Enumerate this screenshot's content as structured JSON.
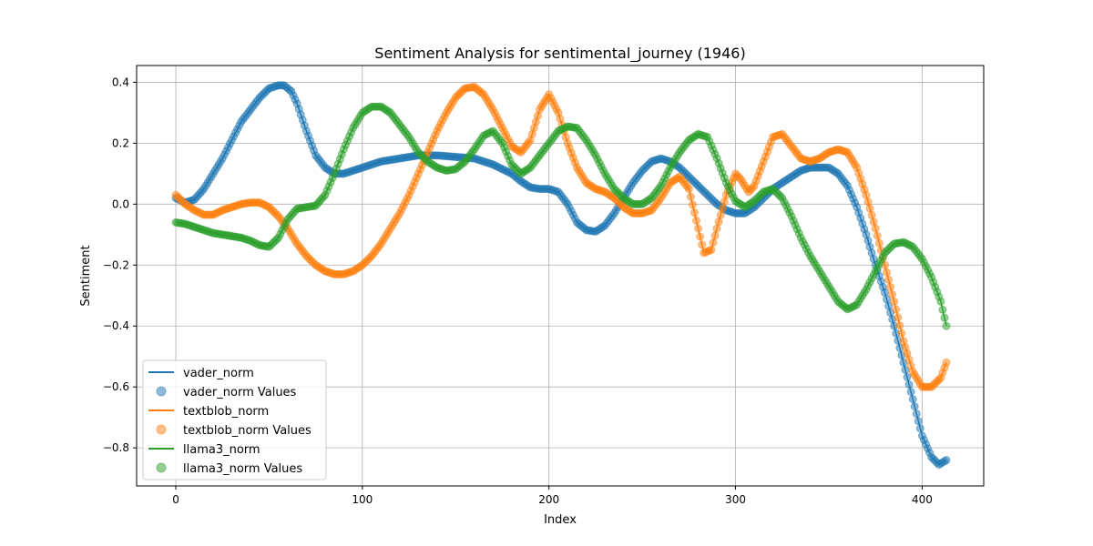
{
  "chart_data": {
    "type": "line",
    "title": "Sentiment Analysis for sentimental_journey (1946)",
    "xlabel": "Index",
    "ylabel": "Sentiment",
    "xlim": [
      -21,
      433
    ],
    "ylim": [
      -0.925,
      0.455
    ],
    "xticks": [
      0,
      100,
      200,
      300,
      400
    ],
    "yticks": [
      -0.8,
      -0.6,
      -0.4,
      -0.2,
      0.0,
      0.2,
      0.4
    ],
    "ytick_labels": [
      "−0.8",
      "−0.6",
      "−0.4",
      "−0.2",
      "0.0",
      "0.2",
      "0.4"
    ],
    "grid": true,
    "legend_position": "lower-left",
    "legend": [
      "vader_norm",
      "vader_norm Values",
      "textblob_norm",
      "textblob_norm Values",
      "llama3_norm",
      "llama3_norm Values"
    ],
    "series": [
      {
        "name": "vader_norm",
        "color": "#1f77b4",
        "x": [
          0,
          5,
          10,
          15,
          20,
          25,
          30,
          35,
          40,
          45,
          50,
          55,
          58,
          62,
          65,
          70,
          75,
          80,
          85,
          90,
          95,
          100,
          110,
          120,
          130,
          140,
          150,
          160,
          170,
          180,
          185,
          190,
          195,
          200,
          205,
          210,
          215,
          220,
          225,
          230,
          235,
          240,
          245,
          250,
          255,
          260,
          265,
          270,
          275,
          280,
          285,
          290,
          295,
          300,
          305,
          310,
          315,
          320,
          325,
          330,
          335,
          340,
          345,
          350,
          355,
          360,
          365,
          370,
          375,
          380,
          385,
          390,
          395,
          400,
          405,
          409,
          413
        ],
        "y": [
          0.02,
          0.005,
          0.015,
          0.05,
          0.1,
          0.15,
          0.21,
          0.27,
          0.31,
          0.35,
          0.38,
          0.39,
          0.39,
          0.37,
          0.33,
          0.24,
          0.16,
          0.12,
          0.1,
          0.1,
          0.11,
          0.12,
          0.14,
          0.15,
          0.16,
          0.16,
          0.155,
          0.15,
          0.13,
          0.1,
          0.075,
          0.055,
          0.05,
          0.05,
          0.04,
          0.0,
          -0.06,
          -0.085,
          -0.09,
          -0.07,
          -0.03,
          0.02,
          0.07,
          0.11,
          0.14,
          0.15,
          0.14,
          0.12,
          0.09,
          0.06,
          0.03,
          0.0,
          -0.02,
          -0.03,
          -0.03,
          -0.01,
          0.02,
          0.05,
          0.07,
          0.09,
          0.11,
          0.12,
          0.12,
          0.12,
          0.1,
          0.06,
          -0.01,
          -0.1,
          -0.2,
          -0.29,
          -0.4,
          -0.52,
          -0.64,
          -0.76,
          -0.83,
          -0.855,
          -0.84
        ]
      },
      {
        "name": "textblob_norm",
        "color": "#ff7f0e",
        "x": [
          0,
          5,
          10,
          15,
          20,
          25,
          30,
          35,
          40,
          45,
          50,
          55,
          60,
          65,
          70,
          75,
          80,
          85,
          90,
          95,
          100,
          105,
          110,
          115,
          120,
          125,
          130,
          135,
          140,
          145,
          150,
          155,
          160,
          165,
          170,
          175,
          180,
          185,
          190,
          195,
          200,
          205,
          210,
          215,
          220,
          225,
          230,
          235,
          240,
          245,
          250,
          255,
          260,
          265,
          270,
          275,
          280,
          283,
          287,
          290,
          295,
          300,
          303,
          307,
          310,
          315,
          320,
          325,
          330,
          335,
          340,
          345,
          350,
          355,
          360,
          365,
          370,
          375,
          380,
          385,
          390,
          395,
          400,
          405,
          410,
          413
        ],
        "y": [
          0.03,
          0.0,
          -0.02,
          -0.035,
          -0.035,
          -0.02,
          -0.01,
          0.0,
          0.005,
          0.005,
          -0.01,
          -0.04,
          -0.08,
          -0.13,
          -0.17,
          -0.2,
          -0.22,
          -0.23,
          -0.23,
          -0.22,
          -0.2,
          -0.17,
          -0.13,
          -0.08,
          -0.03,
          0.03,
          0.1,
          0.17,
          0.24,
          0.3,
          0.35,
          0.38,
          0.385,
          0.36,
          0.31,
          0.25,
          0.19,
          0.17,
          0.21,
          0.31,
          0.36,
          0.3,
          0.2,
          0.12,
          0.07,
          0.05,
          0.04,
          0.02,
          -0.01,
          -0.03,
          -0.03,
          -0.02,
          0.02,
          0.07,
          0.09,
          0.05,
          -0.08,
          -0.16,
          -0.15,
          -0.08,
          0.03,
          0.1,
          0.08,
          0.04,
          0.06,
          0.14,
          0.22,
          0.23,
          0.19,
          0.15,
          0.14,
          0.15,
          0.17,
          0.18,
          0.17,
          0.12,
          0.03,
          -0.08,
          -0.2,
          -0.32,
          -0.45,
          -0.55,
          -0.6,
          -0.6,
          -0.57,
          -0.52
        ]
      },
      {
        "name": "llama3_norm",
        "color": "#2ca02c",
        "x": [
          0,
          5,
          10,
          15,
          20,
          25,
          30,
          35,
          40,
          45,
          50,
          55,
          60,
          65,
          70,
          75,
          80,
          85,
          90,
          95,
          100,
          105,
          110,
          115,
          120,
          125,
          130,
          135,
          140,
          145,
          150,
          155,
          160,
          165,
          170,
          175,
          180,
          185,
          190,
          195,
          200,
          205,
          210,
          215,
          220,
          225,
          230,
          235,
          240,
          245,
          250,
          255,
          260,
          265,
          270,
          275,
          280,
          285,
          290,
          295,
          300,
          305,
          310,
          315,
          320,
          325,
          330,
          335,
          340,
          345,
          350,
          355,
          360,
          365,
          370,
          375,
          380,
          385,
          390,
          395,
          400,
          405,
          410,
          413
        ],
        "y": [
          -0.06,
          -0.065,
          -0.075,
          -0.085,
          -0.095,
          -0.1,
          -0.105,
          -0.11,
          -0.12,
          -0.135,
          -0.14,
          -0.11,
          -0.05,
          -0.015,
          -0.01,
          -0.005,
          0.03,
          0.1,
          0.18,
          0.25,
          0.3,
          0.32,
          0.32,
          0.3,
          0.26,
          0.22,
          0.17,
          0.14,
          0.12,
          0.11,
          0.115,
          0.14,
          0.18,
          0.225,
          0.24,
          0.2,
          0.13,
          0.1,
          0.12,
          0.16,
          0.2,
          0.24,
          0.255,
          0.25,
          0.21,
          0.16,
          0.1,
          0.05,
          0.02,
          0.0,
          0.0,
          0.02,
          0.06,
          0.12,
          0.17,
          0.21,
          0.23,
          0.22,
          0.15,
          0.07,
          0.01,
          -0.01,
          0.01,
          0.04,
          0.05,
          0.02,
          -0.04,
          -0.11,
          -0.17,
          -0.22,
          -0.27,
          -0.32,
          -0.345,
          -0.33,
          -0.28,
          -0.22,
          -0.16,
          -0.13,
          -0.125,
          -0.14,
          -0.18,
          -0.24,
          -0.32,
          -0.4
        ]
      }
    ]
  }
}
